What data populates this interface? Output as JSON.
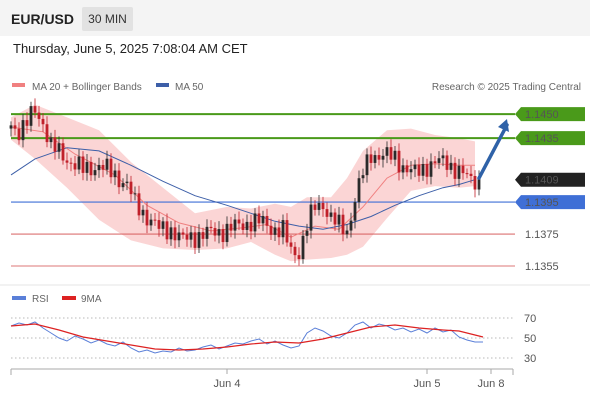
{
  "header": {
    "symbol": "EUR/USD",
    "timeframe": "30 MIN",
    "timestamp": "Thursday, June 5, 2025 7:08:04 AM CET"
  },
  "colors": {
    "up_candle": "#2a2a2a",
    "down_candle": "#c0202a",
    "bollinger_fill": "#fbd5d5",
    "ma20": "#f08080",
    "ma50": "#3d5fa8",
    "resistance": "#4a9a1a",
    "current_price": "#222222",
    "pivot": "#3f6fd6",
    "support": "#d04a4a",
    "arrow": "#2f62a8",
    "rsi": "#5a7fd8",
    "rsi_ma": "#dd2222"
  },
  "chart_data": [
    {
      "type": "candlestick",
      "legend": [
        {
          "label": "MA 20 + Bollinger Bands",
          "color": "#f08080"
        },
        {
          "label": "MA 50",
          "color": "#3d5fa8"
        }
      ],
      "copyright": "Research © 2025 Trading Central",
      "ylim": [
        1.1345,
        1.1462
      ],
      "grid": false,
      "levels": [
        {
          "value": 1.145,
          "label": "1.1450",
          "kind": "resistance"
        },
        {
          "value": 1.1435,
          "label": "1.1435",
          "kind": "resistance"
        },
        {
          "value": 1.1409,
          "label": "1.1409",
          "kind": "current"
        },
        {
          "value": 1.1395,
          "label": "1.1395",
          "kind": "pivot"
        },
        {
          "value": 1.1375,
          "label": "1.1375",
          "kind": "support"
        },
        {
          "value": 1.1355,
          "label": "1.1355",
          "kind": "support"
        }
      ],
      "x_ticks": [
        "Jun 4",
        "Jun 5",
        "Jun 8"
      ],
      "x_tick_index": [
        54,
        104,
        120
      ],
      "candle_count": 118,
      "close_series": [
        [
          0,
          1.1443
        ],
        [
          2,
          1.144
        ],
        [
          4,
          1.1445
        ],
        [
          6,
          1.1452
        ],
        [
          8,
          1.1445
        ],
        [
          10,
          1.143
        ],
        [
          14,
          1.1422
        ],
        [
          18,
          1.1415
        ],
        [
          22,
          1.1418
        ],
        [
          26,
          1.1412
        ],
        [
          29,
          1.1406
        ],
        [
          31,
          1.1394
        ],
        [
          34,
          1.1386
        ],
        [
          37,
          1.1378
        ],
        [
          40,
          1.1378
        ],
        [
          43,
          1.1371
        ],
        [
          45,
          1.1373
        ],
        [
          48,
          1.1375
        ],
        [
          51,
          1.1376
        ],
        [
          54,
          1.1378
        ],
        [
          57,
          1.138
        ],
        [
          60,
          1.1383
        ],
        [
          63,
          1.1382
        ],
        [
          65,
          1.1379
        ],
        [
          68,
          1.1377
        ],
        [
          70,
          1.1364
        ],
        [
          72,
          1.1364
        ],
        [
          74,
          1.138
        ],
        [
          76,
          1.1392
        ],
        [
          78,
          1.1394
        ],
        [
          80,
          1.1385
        ],
        [
          82,
          1.138
        ],
        [
          84,
          1.1377
        ],
        [
          86,
          1.1397
        ],
        [
          88,
          1.1413
        ],
        [
          90,
          1.1425
        ],
        [
          93,
          1.1424
        ],
        [
          96,
          1.1423
        ],
        [
          99,
          1.1415
        ],
        [
          101,
          1.1413
        ],
        [
          104,
          1.1418
        ],
        [
          107,
          1.142
        ],
        [
          109,
          1.142
        ],
        [
          111,
          1.1416
        ],
        [
          113,
          1.1412
        ],
        [
          115,
          1.1409
        ]
      ],
      "ma20": [
        [
          0,
          1.1442
        ],
        [
          8,
          1.1439
        ],
        [
          16,
          1.1425
        ],
        [
          26,
          1.1412
        ],
        [
          34,
          1.1393
        ],
        [
          42,
          1.1382
        ],
        [
          50,
          1.1377
        ],
        [
          58,
          1.1379
        ],
        [
          64,
          1.1381
        ],
        [
          70,
          1.1373
        ],
        [
          76,
          1.138
        ],
        [
          82,
          1.1378
        ],
        [
          88,
          1.1392
        ],
        [
          94,
          1.141
        ],
        [
          100,
          1.1418
        ],
        [
          106,
          1.1419
        ],
        [
          112,
          1.1418
        ],
        [
          116,
          1.1418
        ]
      ],
      "bollinger_upper": [
        [
          0,
          1.1448
        ],
        [
          6,
          1.1456
        ],
        [
          14,
          1.1448
        ],
        [
          22,
          1.144
        ],
        [
          30,
          1.142
        ],
        [
          38,
          1.1404
        ],
        [
          46,
          1.1388
        ],
        [
          54,
          1.1392
        ],
        [
          60,
          1.1391
        ],
        [
          66,
          1.1394
        ],
        [
          70,
          1.1392
        ],
        [
          74,
          1.1398
        ],
        [
          80,
          1.1398
        ],
        [
          84,
          1.141
        ],
        [
          88,
          1.1427
        ],
        [
          94,
          1.144
        ],
        [
          100,
          1.1441
        ],
        [
          106,
          1.1437
        ],
        [
          112,
          1.1435
        ],
        [
          116,
          1.1433
        ]
      ],
      "bollinger_lower": [
        [
          0,
          1.1434
        ],
        [
          6,
          1.1422
        ],
        [
          14,
          1.1404
        ],
        [
          22,
          1.1384
        ],
        [
          30,
          1.1371
        ],
        [
          38,
          1.1366
        ],
        [
          46,
          1.1365
        ],
        [
          54,
          1.1366
        ],
        [
          60,
          1.137
        ],
        [
          66,
          1.1362
        ],
        [
          70,
          1.1358
        ],
        [
          74,
          1.1359
        ],
        [
          80,
          1.136
        ],
        [
          84,
          1.1362
        ],
        [
          88,
          1.1367
        ],
        [
          94,
          1.1385
        ],
        [
          100,
          1.1402
        ],
        [
          106,
          1.1405
        ],
        [
          112,
          1.1404
        ],
        [
          116,
          1.1405
        ]
      ],
      "ma50": [
        [
          0,
          1.1412
        ],
        [
          6,
          1.1422
        ],
        [
          14,
          1.1429
        ],
        [
          22,
          1.1427
        ],
        [
          30,
          1.1418
        ],
        [
          38,
          1.1408
        ],
        [
          46,
          1.1399
        ],
        [
          54,
          1.1393
        ],
        [
          60,
          1.1388
        ],
        [
          66,
          1.1383
        ],
        [
          72,
          1.138
        ],
        [
          78,
          1.1378
        ],
        [
          84,
          1.1381
        ],
        [
          90,
          1.1386
        ],
        [
          96,
          1.1393
        ],
        [
          102,
          1.1399
        ],
        [
          108,
          1.1404
        ],
        [
          112,
          1.1406
        ],
        [
          116,
          1.1409
        ]
      ],
      "projection_arrow": {
        "from": [
          117,
          1.141
        ],
        "to": [
          124,
          1.1447
        ]
      }
    },
    {
      "type": "line",
      "legend": [
        {
          "label": "RSI",
          "color": "#5a7fd8"
        },
        {
          "label": "9MA",
          "color": "#dd2222"
        }
      ],
      "ylim": [
        20,
        80
      ],
      "y_ticks": [
        70,
        50,
        30
      ],
      "rsi": [
        [
          0,
          62
        ],
        [
          2,
          65
        ],
        [
          4,
          63
        ],
        [
          6,
          66
        ],
        [
          8,
          60
        ],
        [
          10,
          55
        ],
        [
          12,
          50
        ],
        [
          14,
          47
        ],
        [
          16,
          52
        ],
        [
          18,
          49
        ],
        [
          20,
          45
        ],
        [
          22,
          48
        ],
        [
          24,
          44
        ],
        [
          26,
          42
        ],
        [
          28,
          46
        ],
        [
          30,
          40
        ],
        [
          32,
          36
        ],
        [
          34,
          38
        ],
        [
          36,
          35
        ],
        [
          38,
          37
        ],
        [
          40,
          36
        ],
        [
          42,
          40
        ],
        [
          44,
          37
        ],
        [
          46,
          38
        ],
        [
          48,
          41
        ],
        [
          50,
          43
        ],
        [
          52,
          39
        ],
        [
          54,
          42
        ],
        [
          56,
          45
        ],
        [
          58,
          44
        ],
        [
          60,
          47
        ],
        [
          62,
          49
        ],
        [
          64,
          44
        ],
        [
          66,
          47
        ],
        [
          68,
          43
        ],
        [
          70,
          40
        ],
        [
          72,
          42
        ],
        [
          74,
          55
        ],
        [
          76,
          60
        ],
        [
          78,
          57
        ],
        [
          80,
          52
        ],
        [
          82,
          50
        ],
        [
          84,
          55
        ],
        [
          86,
          63
        ],
        [
          88,
          66
        ],
        [
          90,
          60
        ],
        [
          92,
          64
        ],
        [
          94,
          62
        ],
        [
          96,
          58
        ],
        [
          98,
          60
        ],
        [
          100,
          56
        ],
        [
          102,
          59
        ],
        [
          104,
          55
        ],
        [
          106,
          60
        ],
        [
          108,
          56
        ],
        [
          110,
          58
        ],
        [
          112,
          51
        ],
        [
          114,
          48
        ],
        [
          116,
          46
        ],
        [
          118,
          46
        ]
      ],
      "rsi_ma": [
        [
          0,
          62
        ],
        [
          6,
          64
        ],
        [
          12,
          58
        ],
        [
          18,
          51
        ],
        [
          24,
          47
        ],
        [
          30,
          43
        ],
        [
          36,
          39
        ],
        [
          42,
          38
        ],
        [
          48,
          39
        ],
        [
          54,
          41
        ],
        [
          60,
          44
        ],
        [
          66,
          46
        ],
        [
          72,
          45
        ],
        [
          78,
          49
        ],
        [
          84,
          55
        ],
        [
          90,
          61
        ],
        [
          96,
          63
        ],
        [
          102,
          60
        ],
        [
          108,
          58
        ],
        [
          112,
          57
        ],
        [
          116,
          53
        ],
        [
          118,
          51
        ]
      ]
    }
  ]
}
